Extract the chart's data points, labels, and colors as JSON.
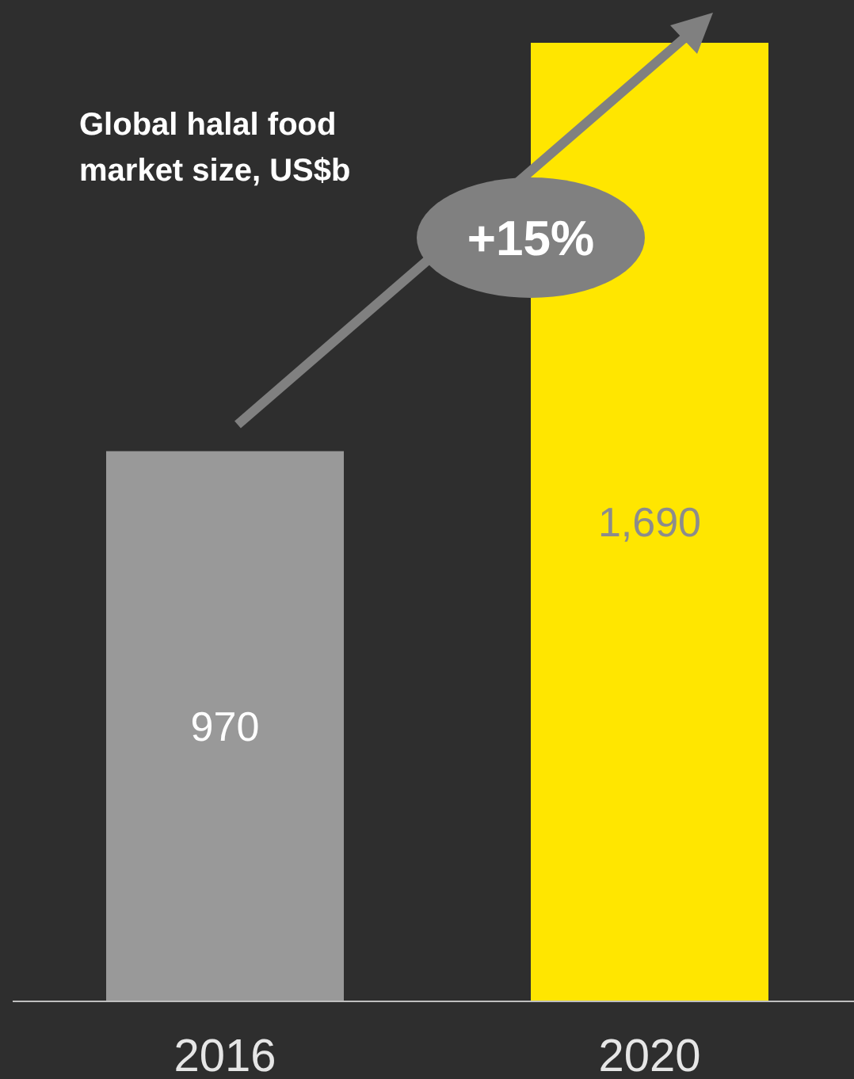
{
  "chart_data": {
    "type": "bar",
    "title": "Global halal food market size, US$b",
    "categories": [
      "2016",
      "2020"
    ],
    "values": [
      970,
      1690
    ],
    "value_labels": [
      "970",
      "1,690"
    ],
    "colors": [
      "#999999",
      "#ffe600"
    ],
    "annotations": [
      "+15%"
    ]
  }
}
